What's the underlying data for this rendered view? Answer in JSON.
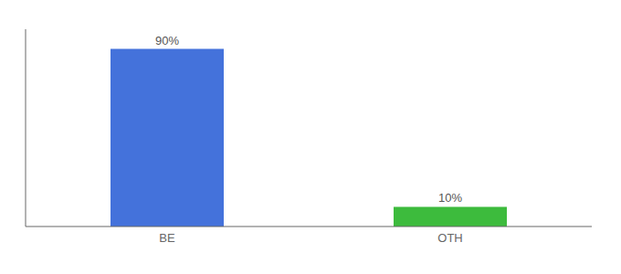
{
  "chart_data": {
    "type": "bar",
    "categories": [
      "BE",
      "OTH"
    ],
    "values": [
      90,
      10
    ],
    "colors": [
      "#4472db",
      "#3dbb3d"
    ],
    "value_labels": [
      "90%",
      "10%"
    ],
    "data_labels": true,
    "ylim": [
      0,
      100
    ],
    "tick_labels": "x"
  }
}
